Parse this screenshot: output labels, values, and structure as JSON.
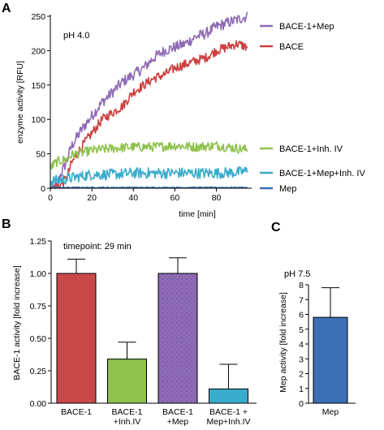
{
  "chart_data": [
    {
      "panel": "A",
      "type": "line",
      "annotation": "pH 4.0",
      "xlabel": "time [min]",
      "ylabel": "enzyme activity [RFU]",
      "xlim": [
        0,
        97
      ],
      "ylim": [
        0,
        250
      ],
      "xticks": [
        0,
        20,
        40,
        60,
        80
      ],
      "yticks": [
        0,
        50,
        100,
        150,
        200,
        250
      ],
      "series": [
        {
          "name": "BACE-1+Mep",
          "color": "#8e6bb5",
          "x": [
            0,
            3,
            5,
            8,
            10,
            15,
            20,
            25,
            30,
            35,
            40,
            45,
            50,
            55,
            60,
            65,
            70,
            75,
            80,
            85,
            90,
            95
          ],
          "y": [
            0,
            2,
            20,
            40,
            60,
            85,
            105,
            125,
            140,
            155,
            165,
            175,
            190,
            200,
            205,
            210,
            220,
            225,
            235,
            240,
            245,
            250
          ],
          "noise": 8
        },
        {
          "name": "BACE",
          "color": "#cc4040",
          "x": [
            0,
            5,
            8,
            10,
            15,
            20,
            25,
            30,
            35,
            40,
            45,
            50,
            55,
            60,
            65,
            70,
            75,
            80,
            85,
            90,
            95
          ],
          "y": [
            0,
            5,
            15,
            35,
            60,
            80,
            100,
            110,
            120,
            140,
            150,
            160,
            165,
            175,
            180,
            185,
            190,
            200,
            205,
            210,
            205
          ],
          "noise": 7
        },
        {
          "name": "BACE-1+Inh. IV",
          "color": "#8fc14e",
          "x": [
            0,
            3,
            5,
            8,
            10,
            20,
            30,
            40,
            50,
            60,
            70,
            80,
            90,
            95
          ],
          "y": [
            30,
            38,
            40,
            42,
            48,
            55,
            58,
            60,
            60,
            62,
            60,
            62,
            58,
            56
          ],
          "noise": 7
        },
        {
          "name": "BACE-1+Mep+Inh. IV",
          "color": "#3aaccb",
          "x": [
            0,
            5,
            10,
            20,
            30,
            40,
            50,
            60,
            70,
            80,
            90,
            95
          ],
          "y": [
            10,
            12,
            15,
            20,
            20,
            22,
            22,
            22,
            22,
            22,
            23,
            25
          ],
          "noise": 8
        },
        {
          "name": "Mep",
          "color": "#3b6fb6",
          "x": [
            0,
            10,
            20,
            30,
            40,
            50,
            60,
            70,
            80,
            90,
            95
          ],
          "y": [
            1,
            1,
            1,
            1,
            1,
            1,
            1,
            1,
            1,
            1,
            1
          ],
          "noise": 0.8
        }
      ]
    },
    {
      "panel": "B",
      "type": "bar",
      "annotation": "timepoint: 29 min",
      "ylabel": "BACE-1 activity [fold increase]",
      "ylim": [
        0,
        1.25
      ],
      "yticks": [
        "0.00",
        "0.25",
        "0.50",
        "0.75",
        "1.00",
        "1.25"
      ],
      "categories": [
        [
          "BACE-1",
          ""
        ],
        [
          "BACE-1",
          "+Inh.IV"
        ],
        [
          "BACE-1",
          "+Mep"
        ],
        [
          "BACE-1 +",
          "Mep+Inh.IV"
        ]
      ],
      "values": [
        1.0,
        0.34,
        1.0,
        0.11
      ],
      "errors": [
        0.11,
        0.13,
        0.12,
        0.19
      ],
      "colors": [
        "#c94848",
        "#8fc14e",
        "#8e6bb5",
        "#3aaccb"
      ]
    },
    {
      "panel": "C",
      "type": "bar",
      "annotation": "pH 7.5",
      "ylabel": "Mep activity [fold increase]",
      "ylim": [
        0,
        8
      ],
      "yticks": [
        "0",
        "1",
        "2",
        "3",
        "4",
        "5",
        "6",
        "7",
        "8"
      ],
      "categories": [
        "Mep"
      ],
      "values": [
        5.8
      ],
      "errors": [
        2.0
      ],
      "colors": [
        "#3b6fb6"
      ]
    }
  ]
}
